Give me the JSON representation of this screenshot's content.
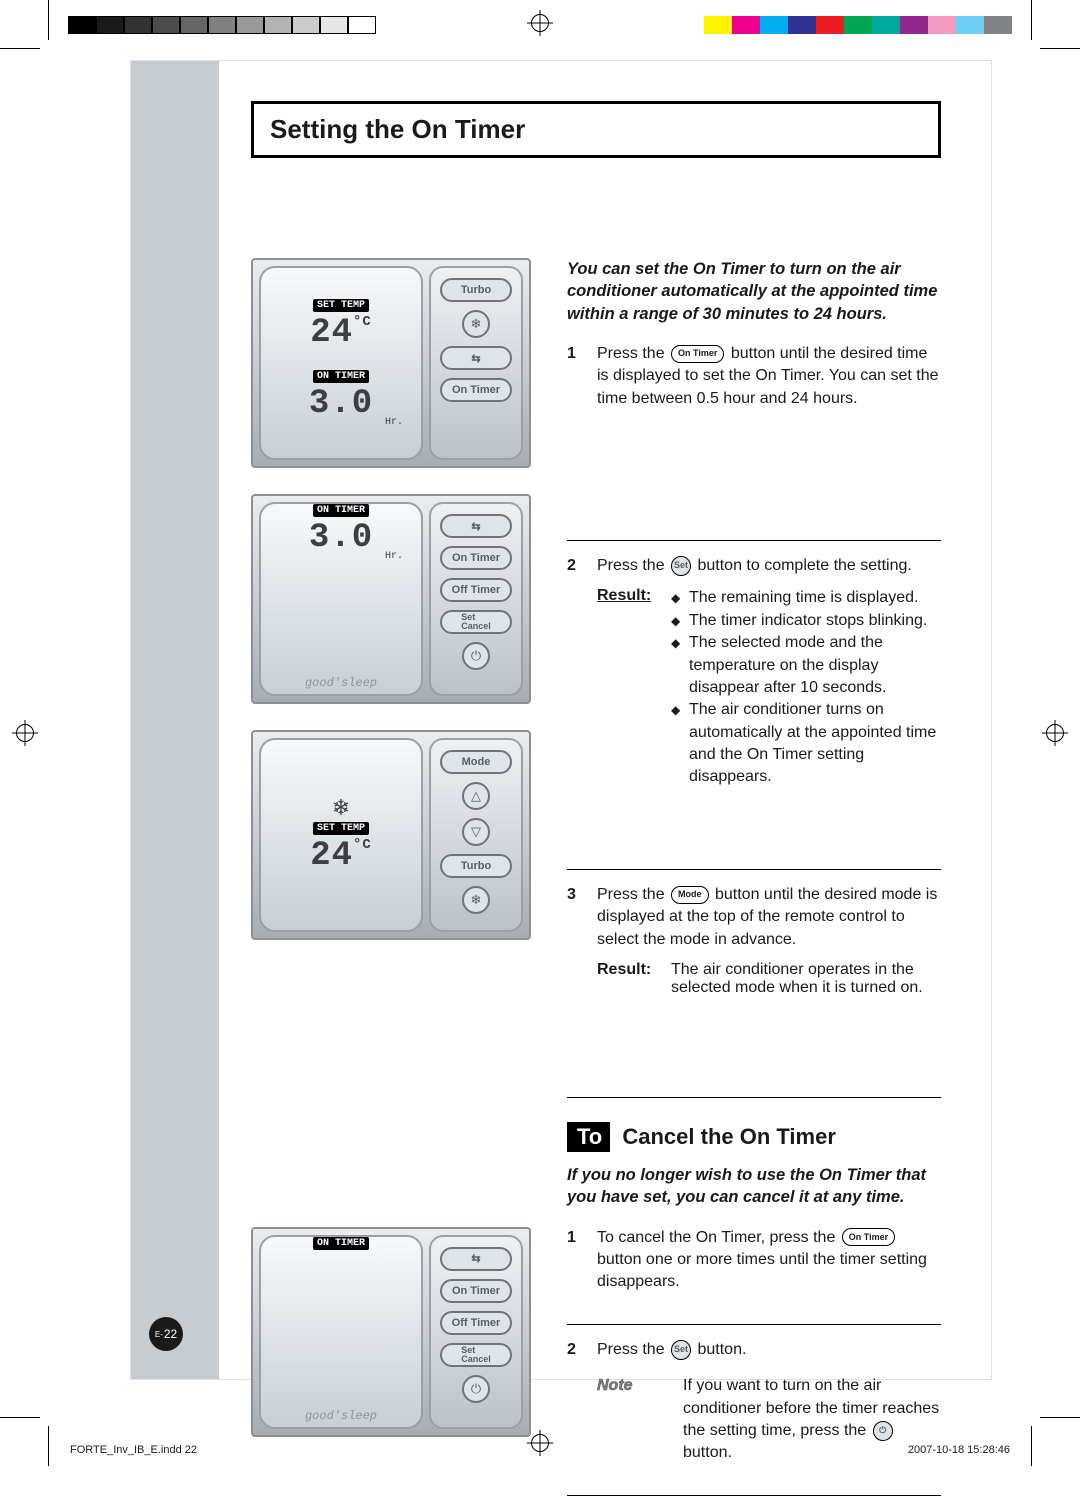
{
  "printer": {
    "gray_swatches": [
      "#000000",
      "#1a1a1a",
      "#333333",
      "#4d4d4d",
      "#666666",
      "#808080",
      "#999999",
      "#b3b3b3",
      "#cccccc",
      "#e6e6e6",
      "#ffffff"
    ],
    "color_swatches": [
      "#fff200",
      "#ec008c",
      "#00aeef",
      "#2e3192",
      "#ed1c24",
      "#00a651",
      "#00a99d",
      "#92278f",
      "#f49ac1",
      "#6dcff6",
      "#808285"
    ]
  },
  "page": {
    "title": "Setting the On Timer",
    "page_number_prefix": "E-",
    "page_number": "22",
    "footer_left": "FORTE_Inv_IB_E.indd   22",
    "footer_right": "2007-10-18   15:28:46"
  },
  "figures": {
    "fig1": {
      "badge_top": "SET TEMP",
      "seg_top": "24",
      "unit_top": "°C",
      "badge_bot": "ON TIMER",
      "seg_bot": "3.0",
      "unit_bot": "Hr.",
      "btns": [
        "Turbo",
        "❄",
        "⇆",
        "On Timer"
      ]
    },
    "fig2": {
      "badge": "ON TIMER",
      "seg": "3.0",
      "unit": "Hr.",
      "goodsleep": "good'sleep",
      "btns": [
        "⇆",
        "On Timer",
        "Off Timer",
        "Set\nCancel",
        "⏻"
      ]
    },
    "fig3": {
      "snow": "❄",
      "badge": "SET TEMP",
      "seg": "24",
      "unit": "°C",
      "btns": [
        "Mode",
        "△",
        "▽",
        "Turbo",
        "❄"
      ]
    },
    "fig4": {
      "badge": "ON TIMER",
      "goodsleep": "good'sleep",
      "btns": [
        "⇆",
        "On Timer",
        "Off Timer",
        "Set\nCancel",
        "⏻"
      ]
    }
  },
  "section1": {
    "intro": "You can set the On Timer to turn on the air conditioner automatically at the appointed time within a range of 30 minutes to 24 hours.",
    "step1_num": "1",
    "step1_a": "Press the ",
    "step1_btn": "On Timer",
    "step1_b": " button until the desired time is displayed to set the On Timer. You can set the time between 0.5 hour and 24 hours.",
    "step2_num": "2",
    "step2_a": "Press the ",
    "step2_btn": "Set",
    "step2_b": " button to complete the setting.",
    "result_label": "Result:",
    "result_items": [
      "The remaining time is displayed.",
      "The timer indicator stops blinking.",
      "The selected mode and the temperature on the display disappear after 10 seconds.",
      "The air conditioner turns on automatically at the appointed time and the On Timer setting disappears."
    ],
    "step3_num": "3",
    "step3_a": "Press the ",
    "step3_btn": "Mode",
    "step3_b": " button until the desired mode is displayed at the top of the remote control to select the mode in advance.",
    "step3_result_label": "Result:",
    "step3_result": "The air conditioner operates in the selected mode when it is turned on."
  },
  "section2": {
    "heading_em": "To",
    "heading_rest": " Cancel the On Timer",
    "intro": "If you no longer wish to use the On Timer that you have set, you can cancel it at any time.",
    "step1_num": "1",
    "step1_a": "To cancel the On Timer, press the ",
    "step1_btn": "On Timer",
    "step1_b": " button one or more times until the timer setting disappears.",
    "step2_num": "2",
    "step2_a": "Press the ",
    "step2_btn": "Set",
    "step2_b": " button.",
    "note_label": "Note",
    "note_a": "If you want to turn on the air conditioner before the timer reaches the setting time, press the ",
    "note_btn": "⏻",
    "note_b": " button."
  }
}
